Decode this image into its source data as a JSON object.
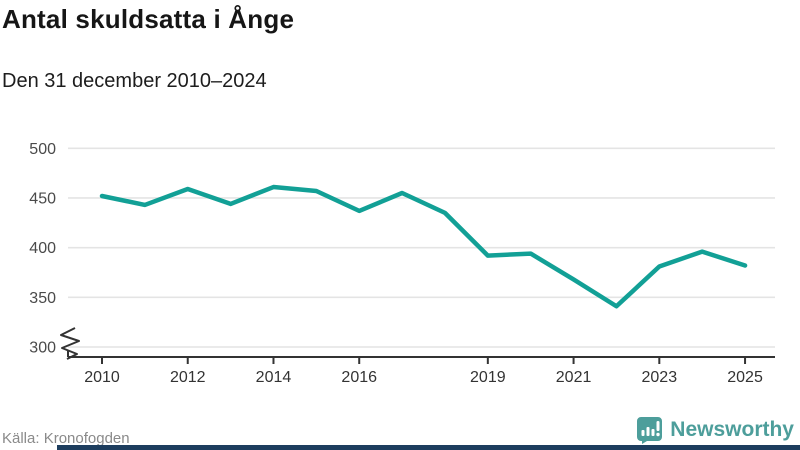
{
  "header": {
    "title": "Antal skuldsatta i Ånge",
    "subtitle": "Den 31 december 2010–2024"
  },
  "footer": {
    "source": "Källa: Kronofogden",
    "brand_name": "Newsworthy"
  },
  "colors": {
    "line": "#12a096",
    "brand_teal": "#4d9e9b",
    "grid": "#e4e4e4",
    "axis": "#333333",
    "bottom_bar": "#1d3d5e"
  },
  "chart_data": {
    "type": "line",
    "title": "Antal skuldsatta i Ånge",
    "subtitle": "Den 31 december 2010–2024",
    "x": [
      2010,
      2011,
      2012,
      2013,
      2014,
      2015,
      2016,
      2017,
      2018,
      2019,
      2020,
      2021,
      2022,
      2023,
      2024,
      2025
    ],
    "values": [
      452,
      443,
      459,
      444,
      461,
      457,
      437,
      455,
      435,
      392,
      394,
      368,
      341,
      381,
      396,
      382
    ],
    "x_ticks": [
      2010,
      2012,
      2014,
      2016,
      2019,
      2021,
      2023,
      2025
    ],
    "x_tick_labels": [
      "2010",
      "2012",
      "2014",
      "2016",
      "2019",
      "2021",
      "2023",
      "2025"
    ],
    "y_ticks": [
      300,
      350,
      400,
      450,
      500
    ],
    "y_tick_labels": [
      "300",
      "350",
      "400",
      "450",
      "500"
    ],
    "ylim": [
      300,
      500
    ],
    "y_axis_break": true,
    "grid": "horizontal",
    "legend": "none",
    "line_color": "#12a096",
    "source": "Källa: Kronofogden"
  }
}
